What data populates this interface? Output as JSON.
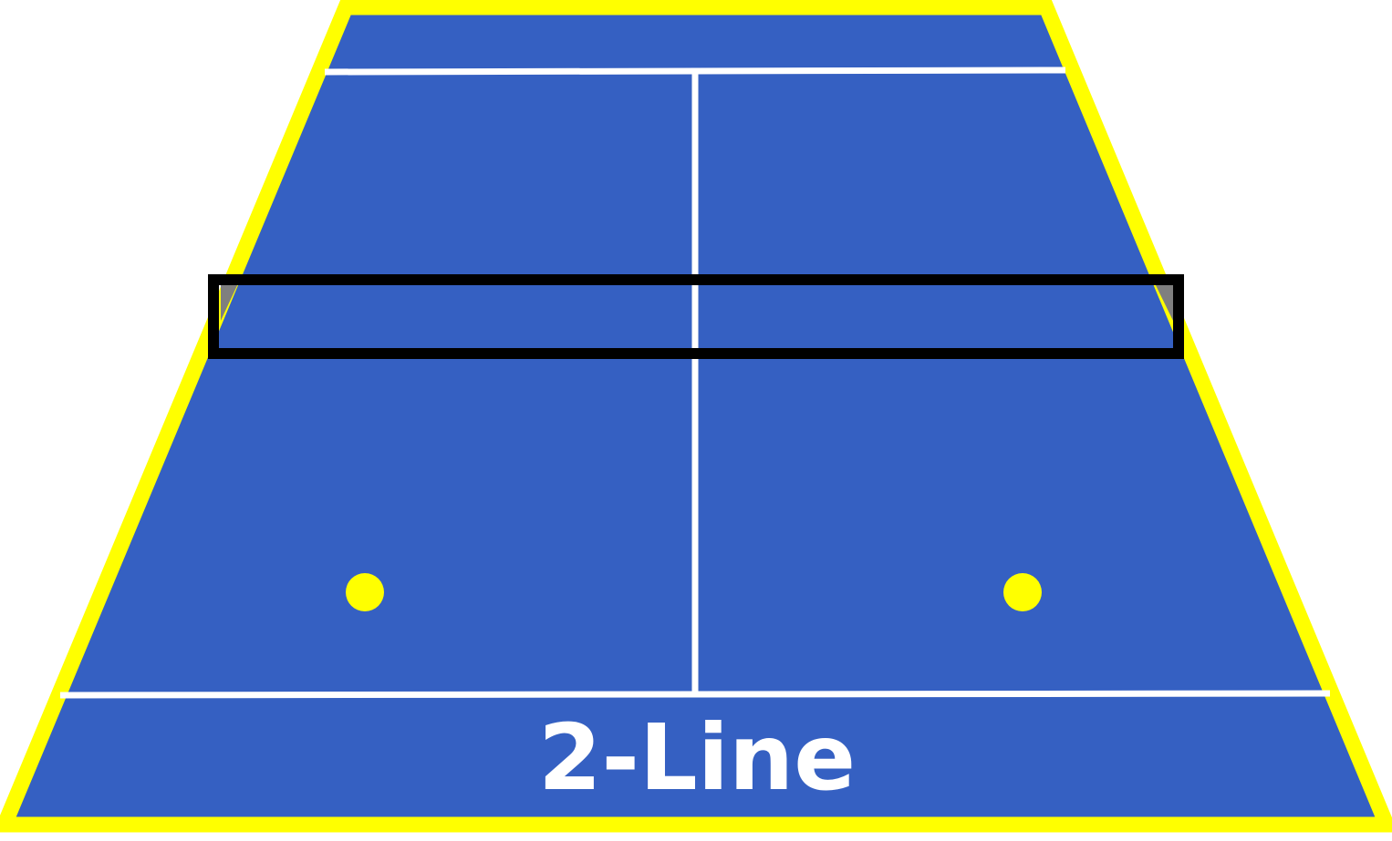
{
  "diagram": {
    "label": "2-Line",
    "colors": {
      "court_fill": "#3560C2",
      "court_border": "#FFFF00",
      "court_lines": "#FFFFFF",
      "net_frame": "#000000",
      "net_post": "#7F7F7F",
      "player_markers": "#FFFF00"
    },
    "player_markers": [
      {
        "side": "left"
      },
      {
        "side": "right"
      }
    ]
  }
}
